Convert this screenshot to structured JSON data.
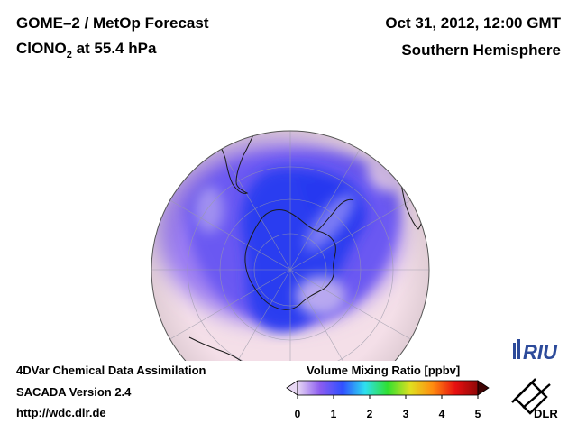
{
  "header": {
    "title_line1": "GOME–2 / MetOp Forecast",
    "species_main": "ClONO",
    "species_sub": "2",
    "species_rest": " at 55.4 hPa",
    "date": "Oct 31, 2012, 12:00 GMT",
    "region": "Southern Hemisphere"
  },
  "footer": {
    "line1": "4DVar Chemical Data Assimilation",
    "line2": "SACADA Version 2.4",
    "line3": "http://wdc.dlr.de"
  },
  "colorbar": {
    "title": "Volume Mixing Ratio [ppbv]",
    "ticks": [
      "0",
      "1",
      "2",
      "3",
      "4",
      "5"
    ],
    "colors": [
      "#e8d8f4",
      "#8c5cf0",
      "#3050ff",
      "#2ee0f0",
      "#30e030",
      "#e0e020",
      "#ff8c10",
      "#e81010",
      "#900808"
    ]
  },
  "logos": {
    "riu": "RIU",
    "dlr": "DLR"
  },
  "map": {
    "projection": "orthographic, south polar",
    "background_color": "#f4dfe8",
    "low_color": "#2a3cf0",
    "mid_color": "#8c6cf0"
  }
}
